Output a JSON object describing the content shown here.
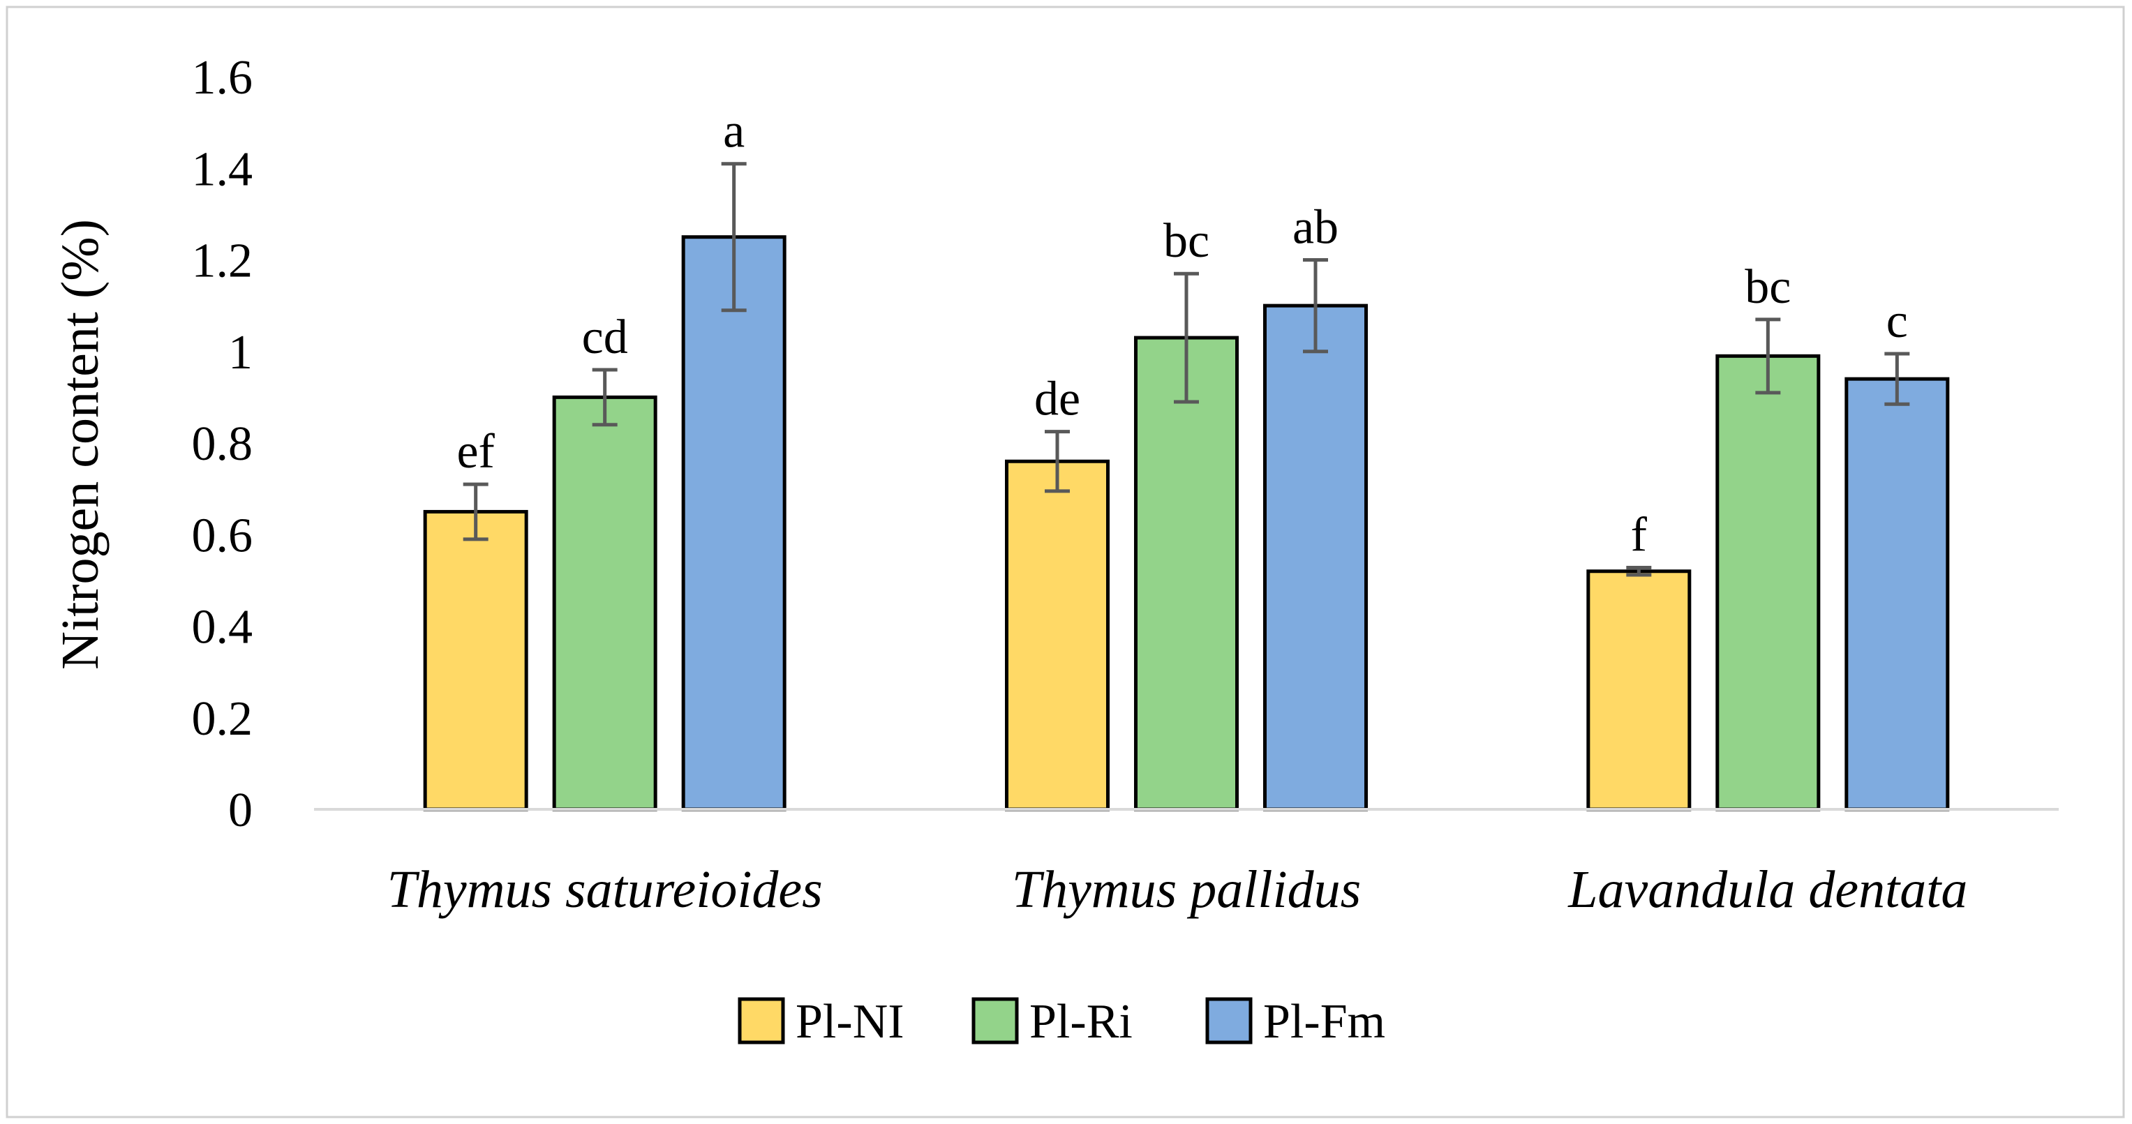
{
  "chart_data": {
    "type": "bar",
    "title": "",
    "xlabel": "",
    "ylabel": "Nitrogen content (%)",
    "ylim": [
      0,
      1.6
    ],
    "yticks": [
      0,
      0.2,
      0.4,
      0.6,
      0.8,
      1,
      1.2,
      1.4,
      1.6
    ],
    "ytick_labels": [
      "0",
      "0.2",
      "0.4",
      "0.6",
      "0.8",
      "1",
      "1.2",
      "1.4",
      "1.6"
    ],
    "grid": false,
    "legend_position": "bottom-center",
    "categories": [
      "Thymus satureioides",
      "Thymus pallidus",
      "Lavandula dentata"
    ],
    "series": [
      {
        "name": "Pl-NI",
        "color": "#FFD966",
        "values": [
          0.65,
          0.76,
          0.52
        ],
        "errors": [
          0.06,
          0.065,
          0.008
        ],
        "letters": [
          "ef",
          "de",
          "f"
        ]
      },
      {
        "name": "Pl-Ri",
        "color": "#93D38A",
        "values": [
          0.9,
          1.03,
          0.99
        ],
        "errors": [
          0.06,
          0.14,
          0.08
        ],
        "letters": [
          "cd",
          "bc",
          "bc"
        ]
      },
      {
        "name": "Pl-Fm",
        "color": "#7FABDF",
        "values": [
          1.25,
          1.1,
          0.94
        ],
        "errors": [
          0.16,
          0.1,
          0.055
        ],
        "letters": [
          "a",
          "ab",
          "c"
        ]
      }
    ]
  }
}
